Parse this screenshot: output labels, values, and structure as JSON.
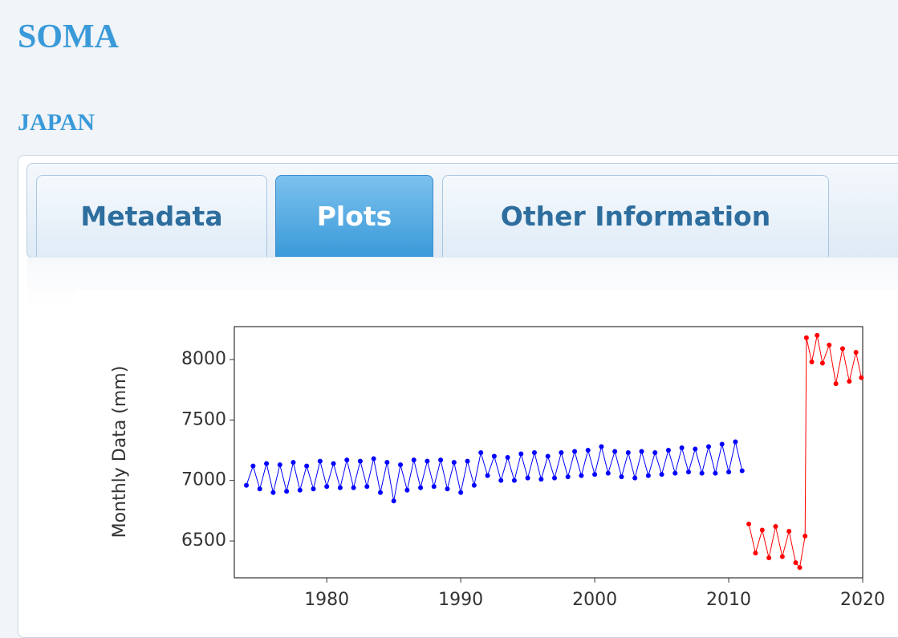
{
  "header": {
    "title": "SOMA",
    "subtitle": "JAPAN"
  },
  "tabs": {
    "items": [
      "Metadata",
      "Plots",
      "Other Information"
    ],
    "active": 1
  },
  "chart_data": {
    "type": "line",
    "y_label": "Monthly Data (mm)",
    "xlim": [
      1973.1,
      2020
    ],
    "xticks": [
      1980,
      1990,
      2000,
      2010,
      2020
    ],
    "ylim": [
      6195,
      8272
    ],
    "yticks": [
      6500,
      7000,
      7500,
      8000
    ],
    "series": [
      {
        "color": "#0000ff",
        "x": [
          1974.0,
          1974.5,
          1975.0,
          1975.5,
          1976.0,
          1976.5,
          1977.0,
          1977.5,
          1978.0,
          1978.5,
          1979.0,
          1979.5,
          1980.0,
          1980.5,
          1981.0,
          1981.5,
          1982.0,
          1982.5,
          1983.0,
          1983.5,
          1984.0,
          1984.5,
          1985.0,
          1985.5,
          1986.0,
          1986.5,
          1987.0,
          1987.5,
          1988.0,
          1988.5,
          1989.0,
          1989.5,
          1990.0,
          1990.5,
          1991.0,
          1991.5,
          1992.0,
          1992.5,
          1993.0,
          1993.5,
          1994.0,
          1994.5,
          1995.0,
          1995.5,
          1996.0,
          1996.5,
          1997.0,
          1997.5,
          1998.0,
          1998.5,
          1999.0,
          1999.5,
          2000.0,
          2000.5,
          2001.0,
          2001.5,
          2002.0,
          2002.5,
          2003.0,
          2003.5,
          2004.0,
          2004.5,
          2005.0,
          2005.5,
          2006.0,
          2006.5,
          2007.0,
          2007.5,
          2008.0,
          2008.5,
          2009.0,
          2009.5,
          2010.0,
          2010.5,
          2011.0
        ],
        "values": [
          6960,
          7120,
          6930,
          7140,
          6900,
          7130,
          6910,
          7150,
          6920,
          7120,
          6930,
          7160,
          6950,
          7140,
          6940,
          7170,
          6940,
          7160,
          6950,
          7180,
          6900,
          7150,
          6830,
          7130,
          6920,
          7170,
          6940,
          7160,
          6950,
          7170,
          6930,
          7150,
          6900,
          7160,
          6960,
          7230,
          7040,
          7200,
          7000,
          7190,
          7000,
          7220,
          7020,
          7230,
          7010,
          7200,
          7020,
          7230,
          7030,
          7240,
          7040,
          7250,
          7050,
          7280,
          7060,
          7240,
          7030,
          7230,
          7020,
          7240,
          7040,
          7230,
          7050,
          7250,
          7060,
          7270,
          7070,
          7260,
          7060,
          7280,
          7060,
          7300,
          7070,
          7320,
          7080
        ]
      },
      {
        "color": "#ff0000",
        "x": [
          2011.5,
          2012.0,
          2012.5,
          2013.0,
          2013.5,
          2014.0,
          2014.5,
          2015.0,
          2015.3,
          2015.7,
          2015.8,
          2016.2,
          2016.6,
          2017.0,
          2017.5,
          2018.0,
          2018.5,
          2019.0,
          2019.5,
          2019.9
        ],
        "values": [
          6640,
          6400,
          6590,
          6360,
          6620,
          6370,
          6580,
          6320,
          6280,
          6540,
          8180,
          7980,
          8200,
          7970,
          8120,
          7800,
          8090,
          7820,
          8060,
          7850
        ]
      }
    ]
  }
}
